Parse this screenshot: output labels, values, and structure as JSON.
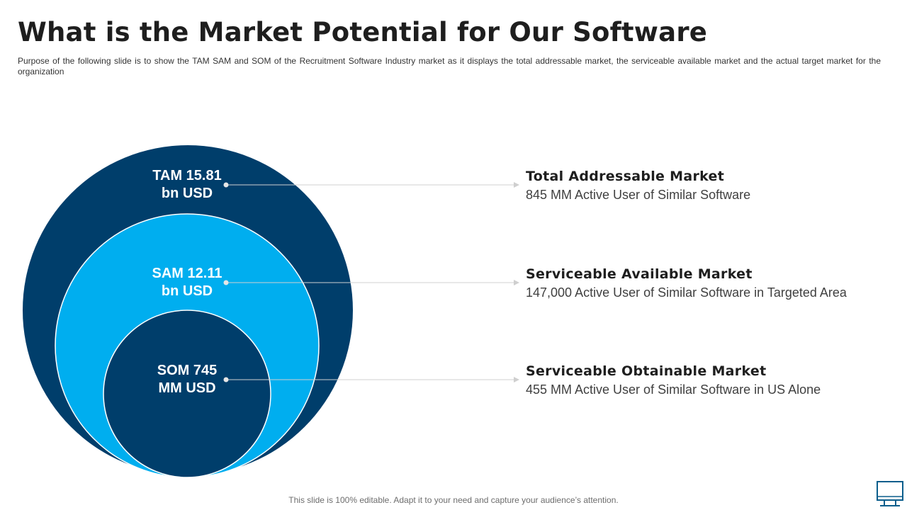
{
  "slide": {
    "title": "What is the Market Potential for Our Software",
    "subtitle": "Purpose of the following slide is to show the TAM SAM and SOM of the Recruitment Software Industry market as it displays the total addressable market, the serviceable available market and the actual target market for the organization",
    "footer": "This slide is 100% editable. Adapt it to your need and capture your audience’s attention."
  },
  "colors": {
    "tam": "#003e6b",
    "sam": "#00aeef",
    "som": "#003e6b",
    "connector": "#d0d0d0"
  },
  "markets": [
    {
      "bubble_label_line1": "TAM 15.81",
      "bubble_label_line2": "bn USD",
      "title": "Total Addressable Market",
      "description": "845 MM Active User of Similar Software"
    },
    {
      "bubble_label_line1": "SAM 12.11",
      "bubble_label_line2": "bn USD",
      "title": "Serviceable Available Market",
      "description": "147,000 Active User of Similar Software in Targeted Area"
    },
    {
      "bubble_label_line1": "SOM 745",
      "bubble_label_line2": "MM USD",
      "title": "Serviceable Obtainable Market",
      "description": "455 MM Active User of Similar Software in US Alone"
    }
  ],
  "icons": {
    "corner": "monitor-icon"
  }
}
